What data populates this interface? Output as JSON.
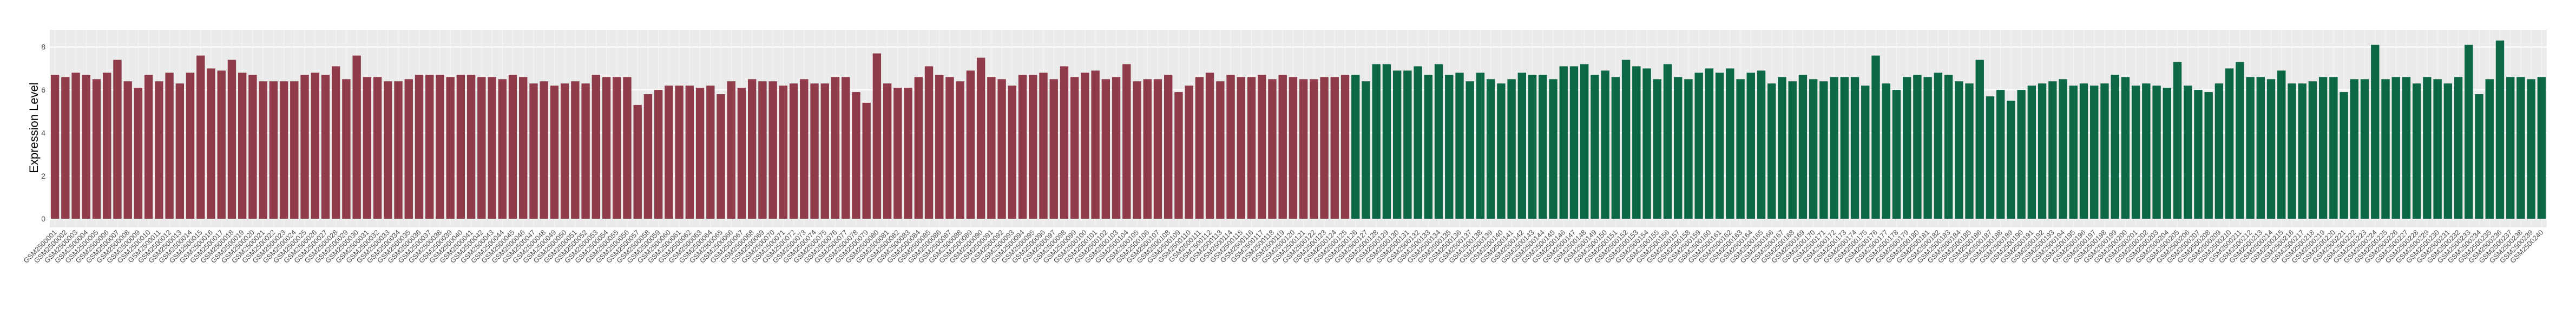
{
  "chart_data": {
    "type": "bar",
    "y_label": "Expression Level",
    "ylim": [
      -0.4,
      8.8
    ],
    "yticks": [
      0,
      2,
      4,
      6,
      8
    ],
    "grid": true,
    "series": [
      {
        "color": "#8f3b4a",
        "categories": [
          "GSM2500001",
          "GSM2500002",
          "GSM2500003",
          "GSM2500004",
          "GSM2500005",
          "GSM2500006",
          "GSM2500007",
          "GSM2500008",
          "GSM2500009",
          "GSM2500010",
          "GSM2500011",
          "GSM2500012",
          "GSM2500013",
          "GSM2500014",
          "GSM2500015",
          "GSM2500016",
          "GSM2500017",
          "GSM2500018",
          "GSM2500019",
          "GSM2500020",
          "GSM2500021",
          "GSM2500022",
          "GSM2500023",
          "GSM2500024",
          "GSM2500025",
          "GSM2500026",
          "GSM2500027",
          "GSM2500028",
          "GSM2500029",
          "GSM2500030",
          "GSM2500031",
          "GSM2500032",
          "GSM2500033",
          "GSM2500034",
          "GSM2500035",
          "GSM2500036",
          "GSM2500037",
          "GSM2500038",
          "GSM2500039",
          "GSM2500040",
          "GSM2500041",
          "GSM2500042",
          "GSM2500043",
          "GSM2500044",
          "GSM2500045",
          "GSM2500046",
          "GSM2500047",
          "GSM2500048",
          "GSM2500049",
          "GSM2500050",
          "GSM2500051",
          "GSM2500052",
          "GSM2500053",
          "GSM2500054",
          "GSM2500055",
          "GSM2500056",
          "GSM2500057",
          "GSM2500058",
          "GSM2500059",
          "GSM2500060",
          "GSM2500061",
          "GSM2500062",
          "GSM2500063",
          "GSM2500064",
          "GSM2500065",
          "GSM2500066",
          "GSM2500067",
          "GSM2500068",
          "GSM2500069",
          "GSM2500070",
          "GSM2500071",
          "GSM2500072",
          "GSM2500073",
          "GSM2500074",
          "GSM2500075",
          "GSM2500076",
          "GSM2500077",
          "GSM2500078",
          "GSM2500079",
          "GSM2500080",
          "GSM2500081",
          "GSM2500082",
          "GSM2500083",
          "GSM2500084",
          "GSM2500085",
          "GSM2500086",
          "GSM2500087",
          "GSM2500088",
          "GSM2500089",
          "GSM2500090",
          "GSM2500091",
          "GSM2500092",
          "GSM2500093",
          "GSM2500094",
          "GSM2500095",
          "GSM2500096",
          "GSM2500097",
          "GSM2500098",
          "GSM2500099",
          "GSM2500100",
          "GSM2500101",
          "GSM2500102",
          "GSM2500103",
          "GSM2500104",
          "GSM2500105",
          "GSM2500106",
          "GSM2500107",
          "GSM2500108",
          "GSM2500109",
          "GSM2500110",
          "GSM2500111",
          "GSM2500112",
          "GSM2500113",
          "GSM2500114",
          "GSM2500115",
          "GSM2500116",
          "GSM2500117",
          "GSM2500118",
          "GSM2500119",
          "GSM2500120",
          "GSM2500121",
          "GSM2500122",
          "GSM2500123",
          "GSM2500124",
          "GSM2500125"
        ],
        "values": [
          6.7,
          6.6,
          6.8,
          6.7,
          6.5,
          6.8,
          7.4,
          6.4,
          6.1,
          6.7,
          6.4,
          6.8,
          6.3,
          6.8,
          7.6,
          7.0,
          6.9,
          7.4,
          6.8,
          6.7,
          6.4,
          6.4,
          6.4,
          6.4,
          6.7,
          6.8,
          6.7,
          7.1,
          6.5,
          7.6,
          6.6,
          6.6,
          6.4,
          6.4,
          6.5,
          6.7,
          6.7,
          6.7,
          6.6,
          6.7,
          6.7,
          6.6,
          6.6,
          6.5,
          6.7,
          6.6,
          6.3,
          6.4,
          6.2,
          6.3,
          6.4,
          6.3,
          6.7,
          6.6,
          6.6,
          6.6,
          5.3,
          5.8,
          6.0,
          6.2,
          6.2,
          6.2,
          6.1,
          6.2,
          5.8,
          6.4,
          6.1,
          6.5,
          6.4,
          6.4,
          6.2,
          6.3,
          6.5,
          6.3,
          6.3,
          6.6,
          6.6,
          5.9,
          5.4,
          7.7,
          6.3,
          6.1,
          6.1,
          6.6,
          7.1,
          6.7,
          6.6,
          6.4,
          6.9,
          7.5,
          6.6,
          6.5,
          6.2,
          6.7,
          6.7,
          6.8,
          6.5,
          7.1,
          6.6,
          6.8,
          6.9,
          6.5,
          6.6,
          7.2,
          6.4,
          6.5,
          6.5,
          6.7,
          5.9,
          6.2,
          6.6,
          6.8,
          6.4,
          6.7,
          6.6,
          6.6,
          6.7,
          6.5,
          6.7,
          6.6,
          6.5,
          6.5,
          6.6,
          6.6,
          6.7
        ]
      },
      {
        "color": "#0c6844",
        "categories": [
          "GSM2500126",
          "GSM2500127",
          "GSM2500128",
          "GSM2500129",
          "GSM2500130",
          "GSM2500131",
          "GSM2500132",
          "GSM2500133",
          "GSM2500134",
          "GSM2500135",
          "GSM2500136",
          "GSM2500137",
          "GSM2500138",
          "GSM2500139",
          "GSM2500140",
          "GSM2500141",
          "GSM2500142",
          "GSM2500143",
          "GSM2500144",
          "GSM2500145",
          "GSM2500146",
          "GSM2500147",
          "GSM2500148",
          "GSM2500149",
          "GSM2500150",
          "GSM2500151",
          "GSM2500152",
          "GSM2500153",
          "GSM2500154",
          "GSM2500155",
          "GSM2500156",
          "GSM2500157",
          "GSM2500158",
          "GSM2500159",
          "GSM2500160",
          "GSM2500161",
          "GSM2500162",
          "GSM2500163",
          "GSM2500164",
          "GSM2500165",
          "GSM2500166",
          "GSM2500167",
          "GSM2500168",
          "GSM2500169",
          "GSM2500170",
          "GSM2500171",
          "GSM2500172",
          "GSM2500173",
          "GSM2500174",
          "GSM2500175",
          "GSM2500176",
          "GSM2500177",
          "GSM2500178",
          "GSM2500179",
          "GSM2500180",
          "GSM2500181",
          "GSM2500182",
          "GSM2500183",
          "GSM2500184",
          "GSM2500185",
          "GSM2500186",
          "GSM2500187",
          "GSM2500188",
          "GSM2500189",
          "GSM2500190",
          "GSM2500191",
          "GSM2500192",
          "GSM2500193",
          "GSM2500194",
          "GSM2500195",
          "GSM2500196",
          "GSM2500197",
          "GSM2500198",
          "GSM2500199",
          "GSM2500200",
          "GSM2500201",
          "GSM2500202",
          "GSM2500203",
          "GSM2500204",
          "GSM2500205",
          "GSM2500206",
          "GSM2500207",
          "GSM2500208",
          "GSM2500209",
          "GSM2500210",
          "GSM2500211",
          "GSM2500212",
          "GSM2500213",
          "GSM2500214",
          "GSM2500215",
          "GSM2500216",
          "GSM2500217",
          "GSM2500218",
          "GSM2500219",
          "GSM2500220",
          "GSM2500221",
          "GSM2500222",
          "GSM2500223",
          "GSM2500224",
          "GSM2500225",
          "GSM2500226",
          "GSM2500227",
          "GSM2500228",
          "GSM2500229",
          "GSM2500230",
          "GSM2500231",
          "GSM2500232",
          "GSM2500233",
          "GSM2500234",
          "GSM2500235",
          "GSM2500236",
          "GSM2500237",
          "GSM2500238",
          "GSM2500239",
          "GSM2500240"
        ],
        "values": [
          6.7,
          6.4,
          7.2,
          7.2,
          6.9,
          6.9,
          7.1,
          6.7,
          7.2,
          6.7,
          6.8,
          6.4,
          6.8,
          6.5,
          6.3,
          6.5,
          6.8,
          6.7,
          6.7,
          6.5,
          7.1,
          7.1,
          7.2,
          6.7,
          6.9,
          6.6,
          7.4,
          7.1,
          7.0,
          6.5,
          7.2,
          6.6,
          6.5,
          6.8,
          7.0,
          6.8,
          7.0,
          6.5,
          6.8,
          6.9,
          6.3,
          6.6,
          6.4,
          6.7,
          6.5,
          6.4,
          6.6,
          6.6,
          6.6,
          6.2,
          7.6,
          6.3,
          6.0,
          6.6,
          6.7,
          6.6,
          6.8,
          6.7,
          6.4,
          6.3,
          7.4,
          5.7,
          6.0,
          5.5,
          6.0,
          6.2,
          6.3,
          6.4,
          6.5,
          6.2,
          6.3,
          6.2,
          6.3,
          6.7,
          6.6,
          6.2,
          6.3,
          6.2,
          6.1,
          7.3,
          6.2,
          6.0,
          5.9,
          6.3,
          7.0,
          7.3,
          6.6,
          6.6,
          6.5,
          6.9,
          6.3,
          6.3,
          6.4,
          6.6,
          6.6,
          5.9,
          6.5,
          6.5,
          8.1,
          6.5,
          6.6,
          6.6,
          6.3,
          6.6,
          6.5,
          6.3,
          6.6,
          8.1,
          5.8,
          6.5,
          8.3,
          6.6,
          6.6,
          6.5,
          6.6
        ]
      }
    ]
  }
}
